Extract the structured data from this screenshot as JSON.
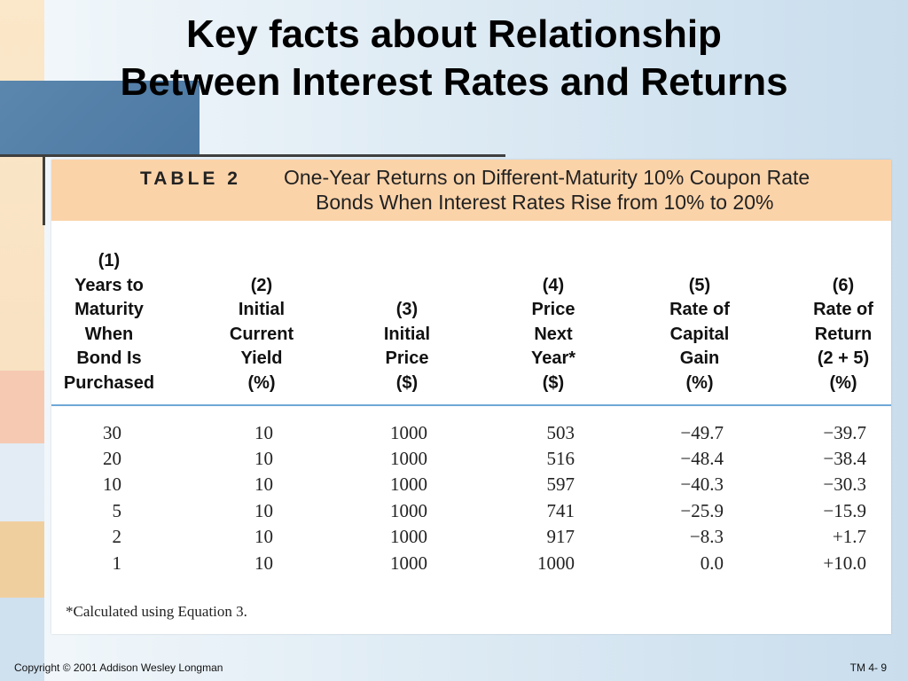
{
  "title": {
    "line1": "Key facts about Relationship",
    "line2": "Between Interest Rates and Returns"
  },
  "table": {
    "label": "TABLE 2",
    "caption_line1": "One-Year Returns on Different-Maturity 10% Coupon Rate",
    "caption_line2": "Bonds When Interest Rates Rise from 10% to 20%",
    "columns": [
      [
        "(1)",
        "Years to",
        "Maturity",
        "When",
        "Bond Is",
        "Purchased"
      ],
      [
        "(2)",
        "Initial",
        "Current",
        "Yield",
        "(%)"
      ],
      [
        "(3)",
        "Initial",
        "Price",
        "($)"
      ],
      [
        "(4)",
        "Price",
        "Next",
        "Year*",
        "($)"
      ],
      [
        "(5)",
        "Rate of",
        "Capital",
        "Gain",
        "(%)"
      ],
      [
        "(6)",
        "Rate of",
        "Return",
        "(2 + 5)",
        "(%)"
      ]
    ],
    "rows": [
      [
        "30",
        "10",
        "1000",
        "503",
        "−49.7",
        "−39.7"
      ],
      [
        "20",
        "10",
        "1000",
        "516",
        "−48.4",
        "−38.4"
      ],
      [
        "10",
        "10",
        "1000",
        "597",
        "−40.3",
        "−30.3"
      ],
      [
        "5",
        "10",
        "1000",
        "741",
        "−25.9",
        "−15.9"
      ],
      [
        "2",
        "10",
        "1000",
        "917",
        "−8.3",
        "+1.7"
      ],
      [
        "1",
        "10",
        "1000",
        "1000",
        "0.0",
        "+10.0"
      ]
    ],
    "footnote": "*Calculated using Equation 3."
  },
  "footer": {
    "copyright": "Copyright © 2001 Addison Wesley Longman",
    "slide_number": "TM 4- 9"
  },
  "colors": {
    "banner": "#fbd3a9",
    "header_rule": "#6fa8d6",
    "accent_block": "#4c79a3"
  }
}
